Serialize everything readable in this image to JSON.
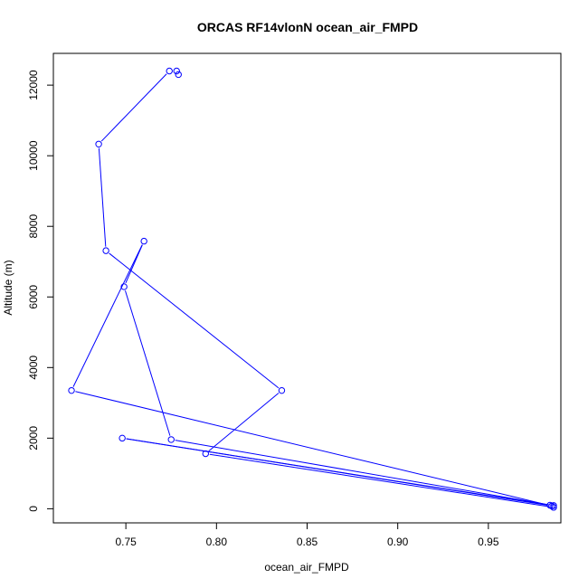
{
  "chart_data": {
    "type": "line",
    "title": "ORCAS RF14vlonN ocean_air_FMPD",
    "xlabel": "ocean_air_FMPD",
    "ylabel": "Altitude (m)",
    "xlim": [
      0.71,
      0.99
    ],
    "ylim": [
      -400,
      12900
    ],
    "x_ticks": [
      0.75,
      0.8,
      0.85,
      0.9,
      0.95
    ],
    "x_tick_labels": [
      "0.75",
      "0.80",
      "0.85",
      "0.90",
      "0.95"
    ],
    "y_ticks": [
      0,
      2000,
      4000,
      6000,
      8000,
      10000,
      12000
    ],
    "y_tick_labels": [
      "0",
      "2000",
      "4000",
      "6000",
      "8000",
      "10000",
      "12000"
    ],
    "grid": false,
    "series": [
      {
        "color": "#0000ff",
        "marker": "open-circle",
        "points": [
          {
            "x": 0.779,
            "y": 12300
          },
          {
            "x": 0.778,
            "y": 12400
          },
          {
            "x": 0.774,
            "y": 12400
          },
          {
            "x": 0.735,
            "y": 10330
          },
          {
            "x": 0.739,
            "y": 7310
          },
          {
            "x": 0.836,
            "y": 3350
          },
          {
            "x": 0.794,
            "y": 1560
          },
          {
            "x": 0.986,
            "y": 40
          },
          {
            "x": 0.984,
            "y": 100
          },
          {
            "x": 0.748,
            "y": 2000
          },
          {
            "x": 0.985,
            "y": 80
          },
          {
            "x": 0.72,
            "y": 3350
          },
          {
            "x": 0.76,
            "y": 7580
          },
          {
            "x": 0.749,
            "y": 6290
          },
          {
            "x": 0.775,
            "y": 1960
          },
          {
            "x": 0.986,
            "y": 90
          }
        ]
      }
    ]
  }
}
